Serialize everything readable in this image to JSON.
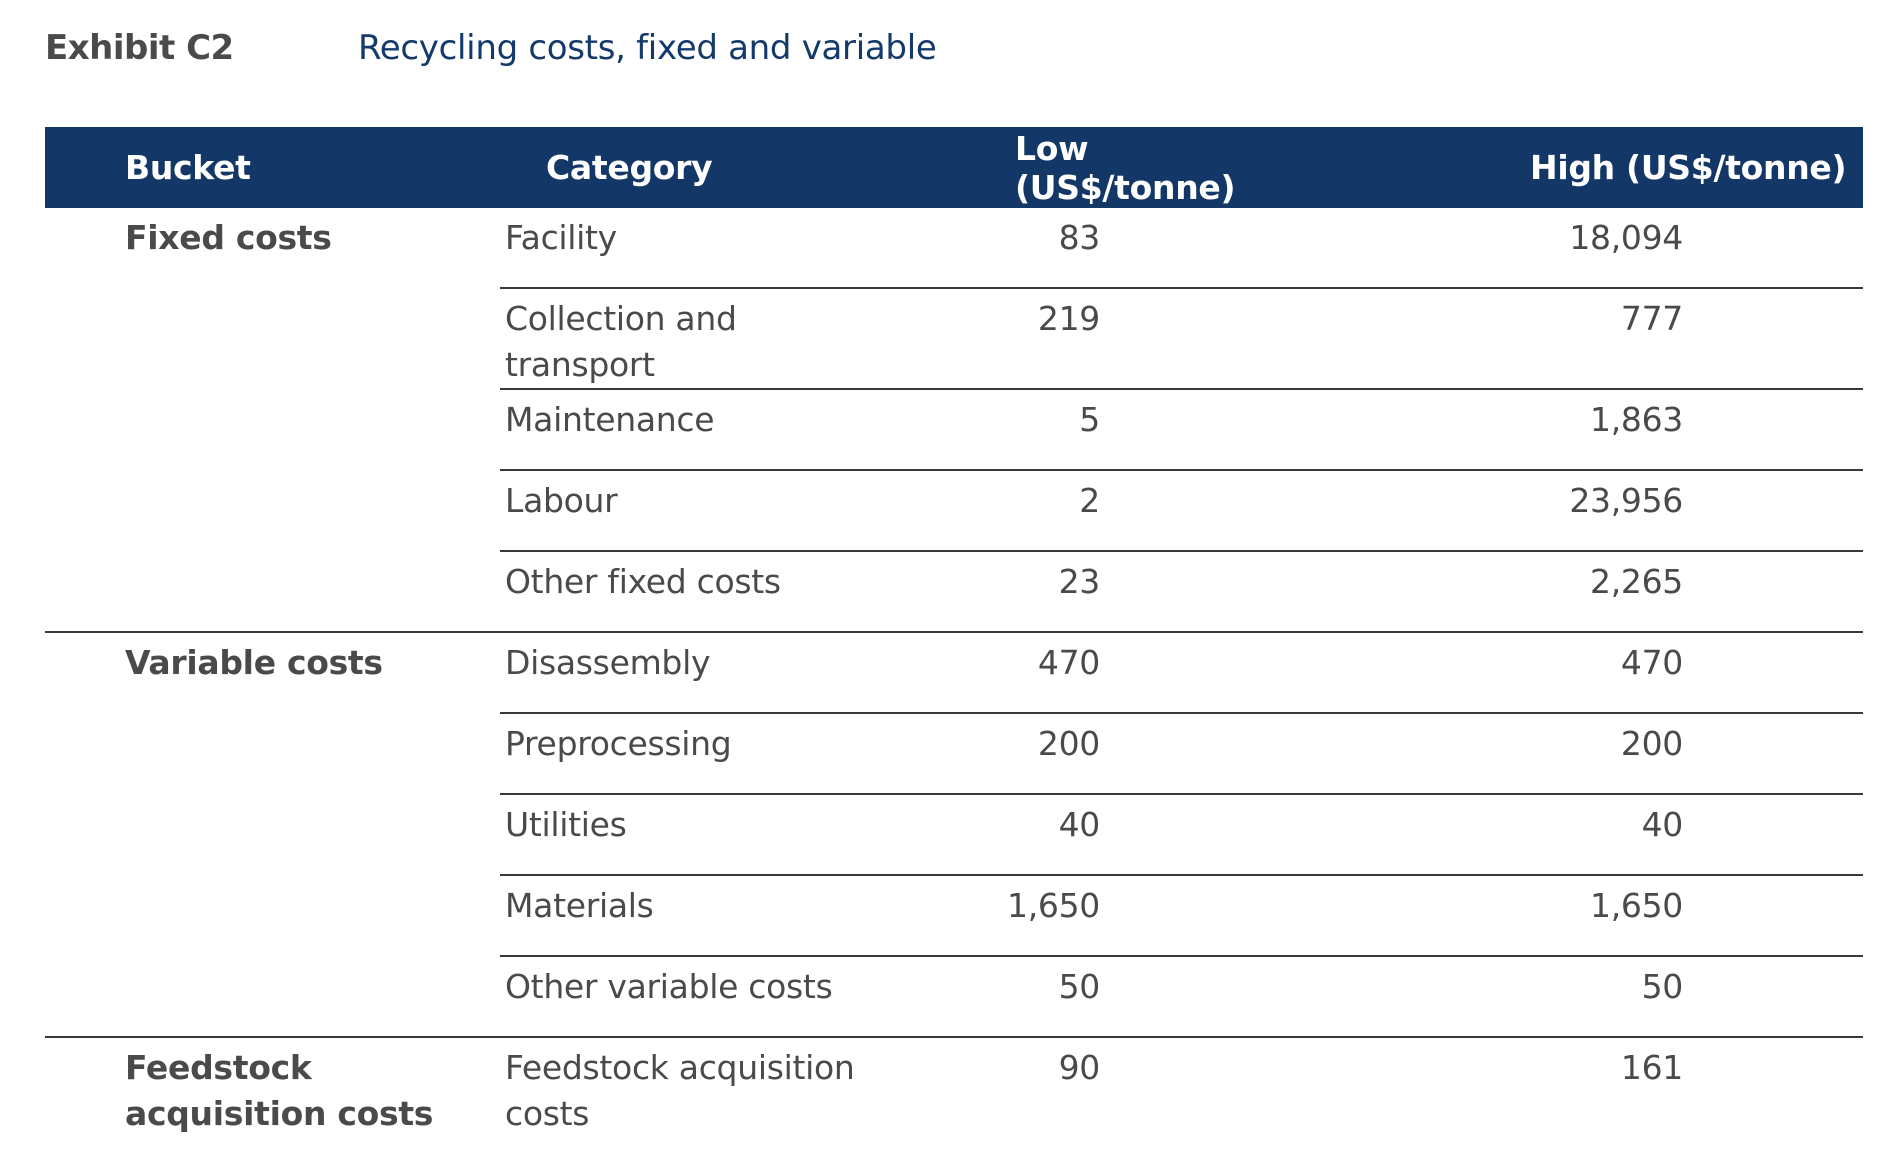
{
  "header": {
    "exhibit_label": "Exhibit C2",
    "title": "Recycling costs, fixed and variable"
  },
  "table": {
    "columns": [
      "Bucket",
      "Category",
      "Low (US$/tonne)",
      "High (US$/tonne)"
    ],
    "groups": [
      {
        "bucket": "Fixed costs",
        "rows": [
          {
            "category": "Facility",
            "low": "83",
            "high": "18,094"
          },
          {
            "category": "Collection and transport",
            "low": "219",
            "high": "777"
          },
          {
            "category": "Maintenance",
            "low": "5",
            "high": "1,863"
          },
          {
            "category": "Labour",
            "low": "2",
            "high": "23,956"
          },
          {
            "category": "Other fixed costs",
            "low": "23",
            "high": "2,265"
          }
        ]
      },
      {
        "bucket": "Variable costs",
        "rows": [
          {
            "category": "Disassembly",
            "low": "470",
            "high": "470"
          },
          {
            "category": "Preprocessing",
            "low": "200",
            "high": "200"
          },
          {
            "category": "Utilities",
            "low": "40",
            "high": "40"
          },
          {
            "category": "Materials",
            "low": "1,650",
            "high": "1,650"
          },
          {
            "category": "Other variable costs",
            "low": "50",
            "high": "50"
          }
        ]
      },
      {
        "bucket": "Feedstock acquisition costs",
        "rows": [
          {
            "category": "Feedstock acquisition costs",
            "low": "90",
            "high": "161"
          }
        ]
      }
    ]
  },
  "colors": {
    "header_background": "#133766",
    "title_color": "#143a6b",
    "text_color": "#4a4a4a"
  }
}
